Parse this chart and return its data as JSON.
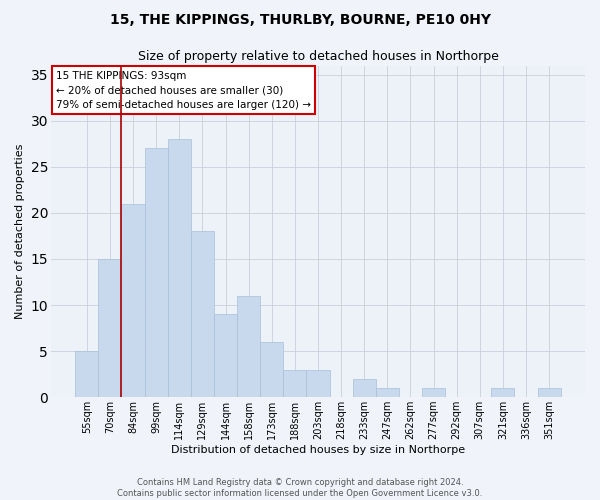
{
  "title": "15, THE KIPPINGS, THURLBY, BOURNE, PE10 0HY",
  "subtitle": "Size of property relative to detached houses in Northorpe",
  "xlabel": "Distribution of detached houses by size in Northorpe",
  "ylabel": "Number of detached properties",
  "categories": [
    "55sqm",
    "70sqm",
    "84sqm",
    "99sqm",
    "114sqm",
    "129sqm",
    "144sqm",
    "158sqm",
    "173sqm",
    "188sqm",
    "203sqm",
    "218sqm",
    "233sqm",
    "247sqm",
    "262sqm",
    "277sqm",
    "292sqm",
    "307sqm",
    "321sqm",
    "336sqm",
    "351sqm"
  ],
  "values": [
    5,
    15,
    21,
    27,
    28,
    18,
    9,
    11,
    6,
    3,
    3,
    0,
    2,
    1,
    0,
    1,
    0,
    0,
    1,
    0,
    1
  ],
  "bar_color": "#c8d9ee",
  "bar_edge_color": "#a8bfd8",
  "vline_x": 1.5,
  "vline_color": "#aa0000",
  "annotation_text": "15 THE KIPPINGS: 93sqm\n← 20% of detached houses are smaller (30)\n79% of semi-detached houses are larger (120) →",
  "annotation_box_color": "#ffffff",
  "annotation_box_edge": "#cc0000",
  "ylim": [
    0,
    36
  ],
  "yticks": [
    0,
    5,
    10,
    15,
    20,
    25,
    30,
    35
  ],
  "grid_color": "#c8d0dc",
  "bg_color": "#edf1f8",
  "fig_bg_color": "#f0f3fa",
  "footer_line1": "Contains HM Land Registry data © Crown copyright and database right 2024.",
  "footer_line2": "Contains public sector information licensed under the Open Government Licence v3.0."
}
